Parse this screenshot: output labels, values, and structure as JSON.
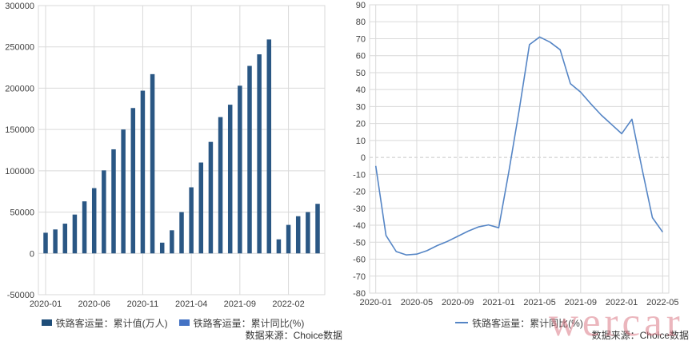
{
  "watermark": {
    "text": "wercar"
  },
  "chart_data": [
    {
      "type": "bar",
      "title": "",
      "categories": [
        "2020-01",
        "2020-02",
        "2020-03",
        "2020-04",
        "2020-05",
        "2020-06",
        "2020-07",
        "2020-08",
        "2020-09",
        "2020-10",
        "2020-11",
        "2020-12",
        "2021-01",
        "2021-02",
        "2021-03",
        "2021-04",
        "2021-05",
        "2021-06",
        "2021-07",
        "2021-08",
        "2021-09",
        "2021-10",
        "2021-11",
        "2021-12",
        "2022-01",
        "2022-02",
        "2022-03",
        "2022-04",
        "2022-05"
      ],
      "series": [
        {
          "name": "铁路客运量：累计值(万人)",
          "color": "#2A5784",
          "values": [
            25000,
            29000,
            36000,
            47000,
            63000,
            79000,
            100500,
            126000,
            150000,
            176000,
            197000,
            217000,
            13000,
            28000,
            50000,
            80000,
            110000,
            135000,
            165000,
            180000,
            203000,
            227000,
            241000,
            259000,
            17000,
            34500,
            45000,
            50000,
            60000
          ]
        }
      ],
      "xlabel": "",
      "ylabel": "",
      "ylim": [
        -50000,
        300000
      ],
      "ytick_step": 50000,
      "xtick_labels_shown": [
        "2020-01",
        "2020-06",
        "2020-11",
        "2021-04",
        "2021-09",
        "2022-02"
      ],
      "xtick_every": 5,
      "grid": true,
      "legend_position": "bottom",
      "legend": [
        {
          "label": "铁路客运量：累计值(万人)",
          "marker": "square",
          "color": "#1F4E79"
        },
        {
          "label": "铁路客运量：累计同比(%)",
          "marker": "square",
          "color": "#4472C4"
        }
      ],
      "source": "数据来源：Choice数据"
    },
    {
      "type": "line",
      "title": "",
      "categories": [
        "2020-01",
        "2020-02",
        "2020-03",
        "2020-04",
        "2020-05",
        "2020-06",
        "2020-07",
        "2020-08",
        "2020-09",
        "2020-10",
        "2020-11",
        "2020-12",
        "2021-01",
        "2021-02",
        "2021-03",
        "2021-04",
        "2021-05",
        "2021-06",
        "2021-07",
        "2021-08",
        "2021-09",
        "2021-10",
        "2021-11",
        "2021-12",
        "2022-01",
        "2022-02",
        "2022-03",
        "2022-04",
        "2022-05"
      ],
      "series": [
        {
          "name": "铁路客运量：累计同比(%)",
          "color": "#5585C5",
          "values": [
            -5,
            -46,
            -55.5,
            -57.5,
            -57,
            -55,
            -52,
            -49.5,
            -46.5,
            -43.5,
            -41,
            -39.8,
            -41.5,
            -8,
            28,
            66.5,
            71,
            68,
            63.5,
            43.5,
            38.5,
            31.5,
            25,
            19.5,
            14,
            22.5,
            -7,
            -35.5,
            -44
          ]
        }
      ],
      "xlabel": "",
      "ylabel": "",
      "ylim": [
        -80,
        90
      ],
      "ytick_step": 10,
      "xtick_labels_shown": [
        "2020-01",
        "2020-05",
        "2020-09",
        "2021-01",
        "2021-05",
        "2021-09",
        "2022-01",
        "2022-05"
      ],
      "xtick_every": 4,
      "grid": true,
      "zero_line_dashed": true,
      "legend_position": "bottom",
      "legend": [
        {
          "label": "铁路客运量：累计同比(%)",
          "marker": "line",
          "color": "#5585C5"
        }
      ],
      "source": "数据来源：Choice数据"
    }
  ]
}
